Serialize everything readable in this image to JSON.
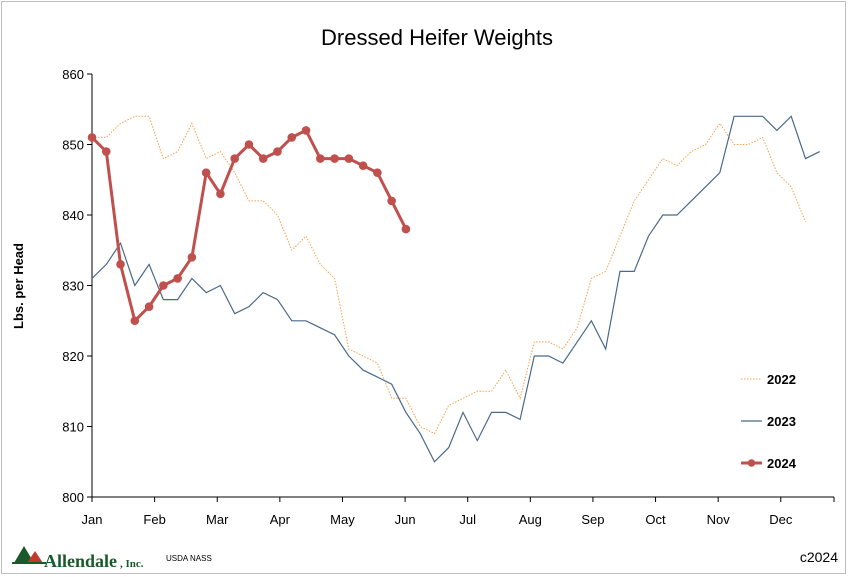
{
  "chart_data": {
    "type": "line",
    "title": "Dressed Heifer Weights",
    "ylabel": "Lbs. per Head",
    "xlabel": "",
    "ylim": [
      800,
      860
    ],
    "yticks": [
      800,
      810,
      820,
      830,
      840,
      850,
      860
    ],
    "xticks": [
      "Jan",
      "Feb",
      "Mar",
      "Apr",
      "May",
      "Jun",
      "Jul",
      "Aug",
      "Sep",
      "Oct",
      "Nov",
      "Dec"
    ],
    "x_unit": "week",
    "x_range": [
      1,
      53
    ],
    "legend_position": "right",
    "grid": false,
    "series": [
      {
        "name": "2022",
        "color": "#f4a14a",
        "style": "dotted",
        "values": [
          851,
          851,
          853,
          854,
          854,
          848,
          849,
          853,
          848,
          849,
          846,
          842,
          842,
          840,
          835,
          837,
          833,
          831,
          821,
          820,
          819,
          814,
          814,
          810,
          809,
          813,
          814,
          815,
          815,
          818,
          814,
          822,
          822,
          821,
          824,
          831,
          832,
          837,
          842,
          845,
          848,
          847,
          849,
          850,
          853,
          850,
          850,
          851,
          846,
          844,
          839
        ]
      },
      {
        "name": "2023",
        "color": "#4a6a8a",
        "style": "solid",
        "values": [
          831,
          833,
          836,
          830,
          833,
          828,
          828,
          831,
          829,
          830,
          826,
          827,
          829,
          828,
          825,
          825,
          824,
          823,
          820,
          818,
          817,
          816,
          812,
          809,
          805,
          807,
          812,
          808,
          812,
          812,
          811,
          820,
          820,
          819,
          822,
          825,
          821,
          832,
          832,
          837,
          840,
          840,
          842,
          844,
          846,
          854,
          854,
          854,
          852,
          854,
          848,
          849
        ]
      },
      {
        "name": "2024",
        "color": "#c0504d",
        "style": "solid-markers",
        "values": [
          851,
          849,
          833,
          825,
          827,
          830,
          831,
          834,
          846,
          843,
          848,
          850,
          848,
          849,
          851,
          852,
          848,
          848,
          848,
          847,
          846,
          842,
          838
        ]
      }
    ]
  },
  "footer": {
    "logo_text": "Allendale",
    "logo_suffix": ", Inc.",
    "source": "USDA NASS",
    "copyright": "c2024"
  }
}
